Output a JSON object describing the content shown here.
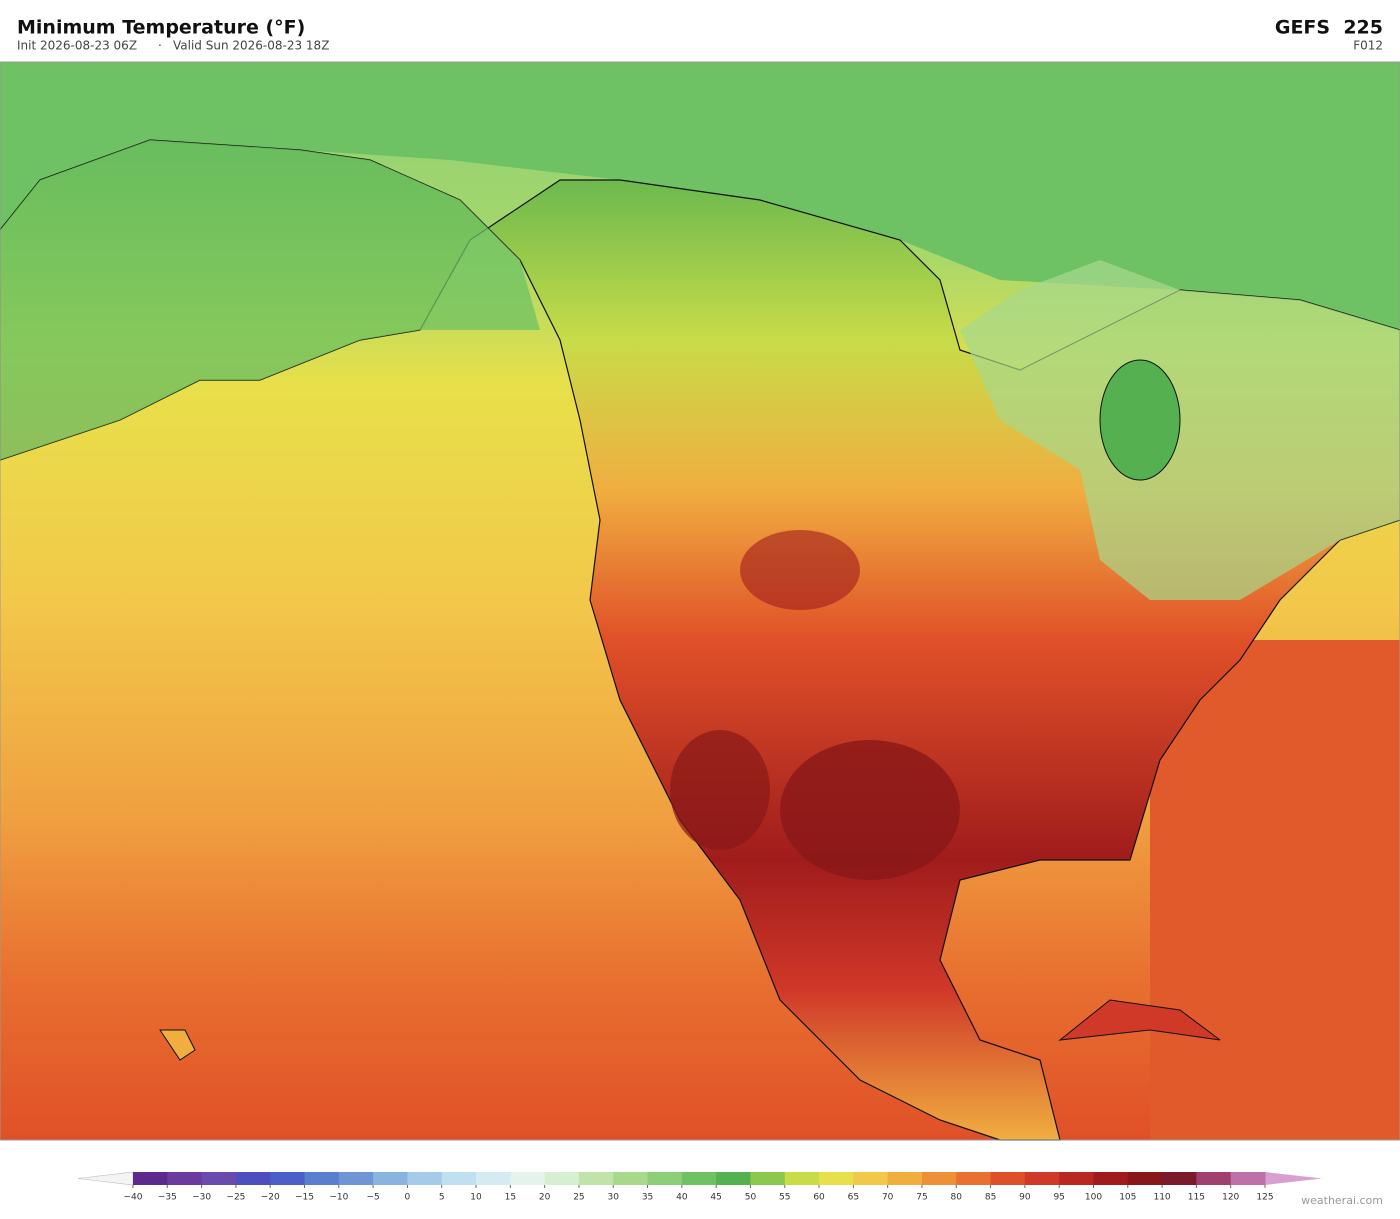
{
  "header": {
    "title": "Minimum Temperature  (°F)",
    "init": "Init 2026-08-23 06Z",
    "separator": "·",
    "valid": "Valid Sun 2026-08-23 18Z",
    "model": "GEFS  225",
    "forecast_hour": "F012"
  },
  "colorbar": {
    "ticks": [
      {
        "value": -40,
        "label": "−40"
      },
      {
        "value": -35,
        "label": "−35"
      },
      {
        "value": -30,
        "label": "−30"
      },
      {
        "value": -25,
        "label": "−25"
      },
      {
        "value": -20,
        "label": "−20"
      },
      {
        "value": -15,
        "label": "−15"
      },
      {
        "value": -10,
        "label": "−10"
      },
      {
        "value": -5,
        "label": "−5"
      },
      0,
      5,
      10,
      15,
      20,
      25,
      30,
      35,
      40,
      45,
      50,
      55,
      60,
      65,
      70,
      75,
      80,
      85,
      90,
      95,
      100,
      105,
      110,
      115,
      120,
      125
    ],
    "colors": [
      "#5b2a8c",
      "#6a3a9e",
      "#6b4aad",
      "#4e4ebf",
      "#4a5fc8",
      "#5a7fd0",
      "#6f95d6",
      "#8ab4e0",
      "#a6cbe8",
      "#bfe0ef",
      "#d4ebf2",
      "#e4f3ec",
      "#d6efd0",
      "#bfe3a8",
      "#a6d98c",
      "#8ccf78",
      "#6fc263",
      "#55b050",
      "#8cc850",
      "#c8dc48",
      "#e8e04a",
      "#f2c84a",
      "#f0ae40",
      "#ee9038",
      "#e87030",
      "#e05028",
      "#d03828",
      "#b82820",
      "#a01c1c",
      "#881818",
      "#7a1a2a",
      "#a04070",
      "#c070a8"
    ],
    "under_color": "#f4f4f4",
    "over_color": "#d8a0d0"
  },
  "footer": {
    "watermark": "weatherai.com"
  }
}
